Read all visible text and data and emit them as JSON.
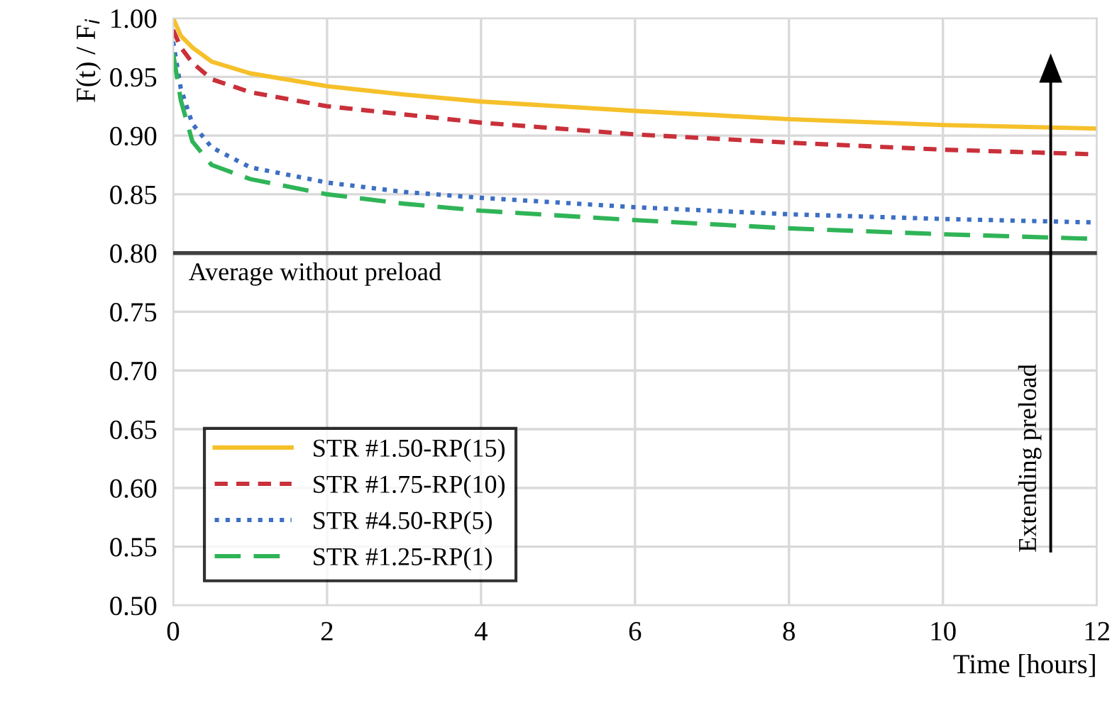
{
  "chart_data": {
    "type": "line",
    "xlabel": "Time [hours]",
    "ylabel": "F(t) / F$_{i}$",
    "x": [
      0,
      0.1,
      0.25,
      0.5,
      1,
      2,
      3,
      4,
      6,
      8,
      10,
      12
    ],
    "series": [
      {
        "name": "STR #1.50-RP(15)",
        "color": "#f5c02a",
        "line_style": "solid",
        "values": [
          1.0,
          0.985,
          0.975,
          0.963,
          0.953,
          0.942,
          0.935,
          0.929,
          0.921,
          0.914,
          0.909,
          0.906
        ]
      },
      {
        "name": "STR #1.75-RP(10)",
        "color": "#c9303a",
        "line_style": "dashed",
        "values": [
          0.99,
          0.975,
          0.962,
          0.948,
          0.937,
          0.925,
          0.918,
          0.911,
          0.901,
          0.894,
          0.888,
          0.884
        ]
      },
      {
        "name": "STR #4.50-RP(5)",
        "color": "#3c6fc4",
        "line_style": "dotted",
        "values": [
          0.98,
          0.94,
          0.91,
          0.89,
          0.873,
          0.86,
          0.852,
          0.847,
          0.839,
          0.833,
          0.829,
          0.826
        ]
      },
      {
        "name": "STR #1.25-RP(1)",
        "color": "#2fb457",
        "line_style": "longdash",
        "values": [
          0.97,
          0.93,
          0.895,
          0.875,
          0.863,
          0.85,
          0.842,
          0.836,
          0.828,
          0.821,
          0.816,
          0.812
        ]
      }
    ],
    "xlim": [
      0,
      12
    ],
    "xticks": [
      0,
      2,
      4,
      6,
      8,
      10,
      12
    ],
    "ylim": [
      0.5,
      1.0
    ],
    "yticks": [
      {
        "value": 0.5,
        "label": "0.50"
      },
      {
        "value": 0.55,
        "label": "0.55"
      },
      {
        "value": 0.6,
        "label": "0.60"
      },
      {
        "value": 0.65,
        "label": "0.65"
      },
      {
        "value": 0.7,
        "label": "0.70"
      },
      {
        "value": 0.75,
        "label": "0.75"
      },
      {
        "value": 0.8,
        "label": "0.80"
      },
      {
        "value": 0.85,
        "label": "0.85"
      },
      {
        "value": 0.9,
        "label": "0.90"
      },
      {
        "value": 0.95,
        "label": "0.95"
      },
      {
        "value": 1.0,
        "label": "1.00"
      }
    ],
    "ref_lines": [
      {
        "axis": "y",
        "value": 0.8,
        "label": "Average without preload",
        "color": "#404040"
      }
    ],
    "annotations": [
      "Extending preload"
    ],
    "grid": true,
    "legend": "bottom left"
  }
}
